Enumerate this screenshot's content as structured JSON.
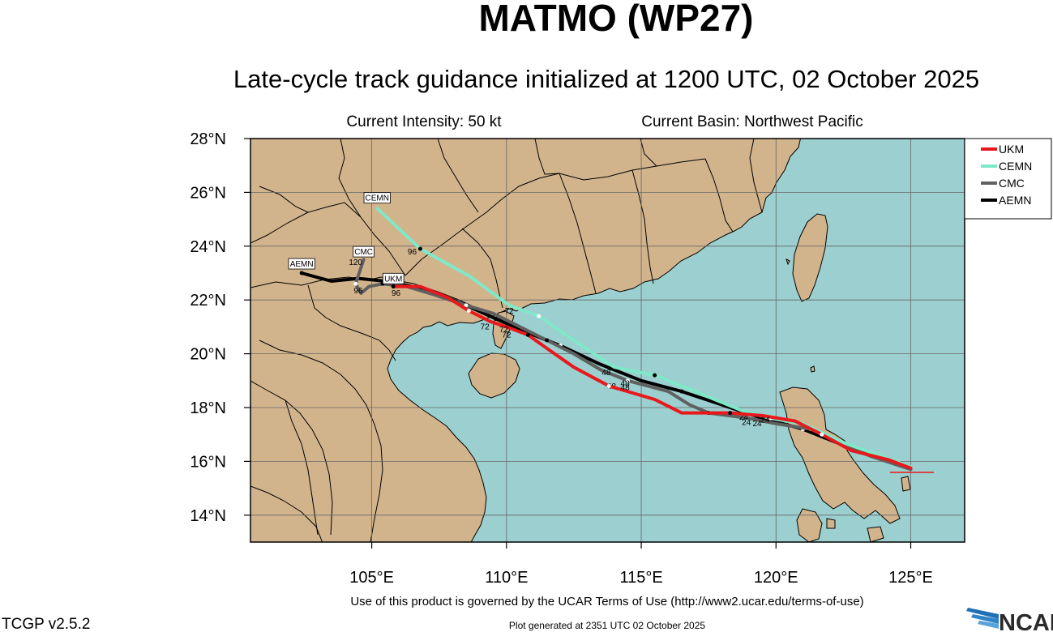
{
  "title": "MATMO (WP27)",
  "subtitle": "Late-cycle track guidance initialized at 1200 UTC, 02 October 2025",
  "current_intensity": "Current Intensity: 50 kt",
  "current_basin": "Current Basin: Northwest Pacific",
  "terms": "Use of this product is governed by the UCAR Terms of Use (http://www2.ucar.edu/terms-of-use)",
  "generated": "Plot generated at 2351 UTC   02 October 2025",
  "version": "TCGP v2.5.2",
  "logo_text": "NCAR",
  "colors": {
    "land": "#d2b48c",
    "ocean": "#9ccfcf",
    "UKM": "#e8181c",
    "CEMN": "#7fe8c8",
    "CMC": "#606060",
    "AEMN": "#000000"
  },
  "chart_data": {
    "type": "map-track",
    "lon_range": [
      100.5,
      127
    ],
    "lat_range": [
      13,
      28
    ],
    "lon_ticks": [
      {
        "value": 105,
        "label": "105°E"
      },
      {
        "value": 110,
        "label": "110°E"
      },
      {
        "value": 115,
        "label": "115°E"
      },
      {
        "value": 120,
        "label": "120°E"
      },
      {
        "value": 125,
        "label": "125°E"
      }
    ],
    "lat_ticks": [
      {
        "value": 14,
        "label": "14°N"
      },
      {
        "value": 16,
        "label": "16°N"
      },
      {
        "value": 18,
        "label": "18°N"
      },
      {
        "value": 20,
        "label": "20°N"
      },
      {
        "value": 22,
        "label": "22°N"
      },
      {
        "value": 24,
        "label": "24°N"
      },
      {
        "value": 26,
        "label": "26°N"
      },
      {
        "value": 28,
        "label": "28°N"
      }
    ],
    "grid": true,
    "legend_position": "top-right",
    "series": [
      {
        "name": "UKM",
        "track": [
          [
            125,
            15.75
          ],
          [
            124.2,
            16.05
          ],
          [
            122.8,
            16.4
          ],
          [
            121.7,
            17.0
          ],
          [
            120.7,
            17.5
          ],
          [
            119.5,
            17.7
          ],
          [
            118.3,
            17.8
          ],
          [
            116.5,
            17.8
          ],
          [
            115.5,
            18.3
          ],
          [
            113.8,
            18.8
          ],
          [
            112.5,
            19.5
          ],
          [
            111.5,
            20.2
          ],
          [
            110.8,
            20.7
          ],
          [
            110,
            21.0
          ],
          [
            109.4,
            21.2
          ],
          [
            108.6,
            21.6
          ],
          [
            107.8,
            22.1
          ],
          [
            106.8,
            22.5
          ],
          [
            105.8,
            22.5
          ]
        ],
        "labels": [
          {
            "text": "24",
            "lon": 119.6,
            "lat": 17.45
          },
          {
            "text": "48",
            "lon": 114.4,
            "lat": 18.65
          },
          {
            "text": "72",
            "lon": 109.9,
            "lat": 20.8
          }
        ],
        "end_label": "UKM",
        "end_label_pos": [
          105.8,
          22.75
        ]
      },
      {
        "name": "CEMN",
        "track": [
          [
            125,
            15.8
          ],
          [
            122.5,
            16.7
          ],
          [
            121,
            17.4
          ],
          [
            119.8,
            17.6
          ],
          [
            118.7,
            17.9
          ],
          [
            117,
            18.6
          ],
          [
            115.5,
            19.2
          ],
          [
            114,
            19.5
          ],
          [
            112.5,
            20.5
          ],
          [
            111.2,
            21.4
          ],
          [
            110.1,
            21.8
          ],
          [
            108.6,
            22.9
          ],
          [
            106.8,
            23.9
          ],
          [
            105.2,
            25.4
          ]
        ],
        "labels": [
          {
            "text": "24",
            "lon": 118.8,
            "lat": 17.55
          },
          {
            "text": "48",
            "lon": 113.7,
            "lat": 19.2
          },
          {
            "text": "72",
            "lon": 110.1,
            "lat": 21.5
          },
          {
            "text": "96",
            "lon": 106.5,
            "lat": 23.7
          }
        ],
        "end_label": "CEMN",
        "end_label_pos": [
          105.2,
          25.75
        ]
      },
      {
        "name": "CMC",
        "track": [
          [
            125,
            15.7
          ],
          [
            123.5,
            16.2
          ],
          [
            122.5,
            16.6
          ],
          [
            121.3,
            17.2
          ],
          [
            120,
            17.4
          ],
          [
            119,
            17.6
          ],
          [
            117.5,
            17.8
          ],
          [
            116.8,
            18.1
          ],
          [
            116,
            18.6
          ],
          [
            114.5,
            19.0
          ],
          [
            113.5,
            19.4
          ],
          [
            112.5,
            20.0
          ],
          [
            111.5,
            20.5
          ],
          [
            110.5,
            21.0
          ],
          [
            109.5,
            21.5
          ],
          [
            108.5,
            21.8
          ],
          [
            107.3,
            22.2
          ],
          [
            106.3,
            22.5
          ],
          [
            105.4,
            22.6
          ],
          [
            104.9,
            22.5
          ],
          [
            104.6,
            22.25
          ],
          [
            104.4,
            22.6
          ],
          [
            104.7,
            23.5
          ]
        ],
        "labels": [
          {
            "text": "24",
            "lon": 119.3,
            "lat": 17.3
          },
          {
            "text": "48",
            "lon": 114.4,
            "lat": 18.8
          },
          {
            "text": "72",
            "lon": 110,
            "lat": 20.6
          },
          {
            "text": "96",
            "lon": 104.5,
            "lat": 22.25
          },
          {
            "text": "120",
            "lon": 104.4,
            "lat": 23.3
          }
        ],
        "end_label": "CMC",
        "end_label_pos": [
          104.7,
          23.75
        ]
      },
      {
        "name": "AEMN",
        "track": [
          [
            125,
            15.8
          ],
          [
            123.5,
            16.25
          ],
          [
            122.5,
            16.6
          ],
          [
            121,
            17.2
          ],
          [
            119.5,
            17.6
          ],
          [
            118,
            18.1
          ],
          [
            116.5,
            18.6
          ],
          [
            115,
            19.0
          ],
          [
            113.5,
            19.6
          ],
          [
            112,
            20.3
          ],
          [
            111,
            20.7
          ],
          [
            110.3,
            21.0
          ],
          [
            109.6,
            21.3
          ],
          [
            108.5,
            21.8
          ],
          [
            107,
            22.4
          ],
          [
            105.5,
            22.7
          ],
          [
            104.5,
            22.8
          ],
          [
            103.5,
            22.7
          ],
          [
            102.4,
            23.0
          ]
        ],
        "labels": [
          {
            "text": "24",
            "lon": 118.9,
            "lat": 17.35
          },
          {
            "text": "48",
            "lon": 113.9,
            "lat": 18.7
          },
          {
            "text": "72",
            "lon": 109.2,
            "lat": 20.9
          },
          {
            "text": "96",
            "lon": 105.9,
            "lat": 22.15
          }
        ],
        "end_label": "AEMN",
        "end_label_pos": [
          102.4,
          23.3
        ]
      }
    ]
  }
}
